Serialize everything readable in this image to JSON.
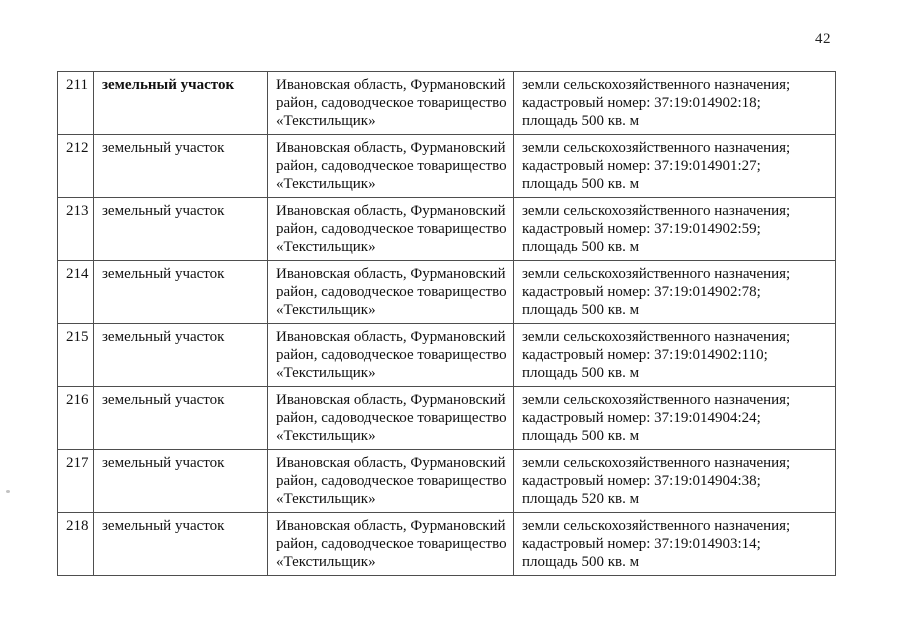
{
  "page_number": "42",
  "table": {
    "rows": [
      {
        "num": "211",
        "type": "земельный участок",
        "location_lines": [
          "Ивановская область, Фурмановский",
          "район, садоводческое товарищество",
          "«Текстильщик»"
        ],
        "details_lines": [
          "земли сельскохозяйственного назначения;",
          "кадастровый номер: 37:19:014902:18;",
          "площадь 500 кв. м"
        ]
      },
      {
        "num": "212",
        "type": "земельный участок",
        "location_lines": [
          "Ивановская область, Фурмановский",
          "район, садоводческое товарищество",
          "«Текстильщик»"
        ],
        "details_lines": [
          "земли сельскохозяйственного назначения;",
          "кадастровый номер: 37:19:014901:27;",
          "площадь 500 кв. м"
        ]
      },
      {
        "num": "213",
        "type": "земельный участок",
        "location_lines": [
          "Ивановская область, Фурмановский",
          "район, садоводческое товарищество",
          "«Текстильщик»"
        ],
        "details_lines": [
          "земли сельскохозяйственного назначения;",
          "кадастровый номер: 37:19:014902:59;",
          "площадь 500 кв. м"
        ]
      },
      {
        "num": "214",
        "type": "земельный участок",
        "location_lines": [
          "Ивановская область, Фурмановский",
          "район, садоводческое товарищество",
          "«Текстильщик»"
        ],
        "details_lines": [
          "земли сельскохозяйственного назначения;",
          "кадастровый номер: 37:19:014902:78;",
          "площадь 500 кв. м"
        ]
      },
      {
        "num": "215",
        "type": "земельный участок",
        "location_lines": [
          "Ивановская область, Фурмановский",
          "район, садоводческое товарищество",
          "«Текстильщик»"
        ],
        "details_lines": [
          "земли сельскохозяйственного назначения;",
          "кадастровый номер: 37:19:014902:110;",
          "площадь 500 кв. м"
        ]
      },
      {
        "num": "216",
        "type": "земельный участок",
        "location_lines": [
          "Ивановская область, Фурмановский",
          "район, садоводческое товарищество",
          "«Текстильщик»"
        ],
        "details_lines": [
          "земли сельскохозяйственного назначения;",
          "кадастровый номер: 37:19:014904:24;",
          "площадь 500 кв. м"
        ]
      },
      {
        "num": "217",
        "type": "земельный участок",
        "location_lines": [
          "Ивановская область, Фурмановский",
          "район, садоводческое товарищество",
          "«Текстильщик»"
        ],
        "details_lines": [
          "земли сельскохозяйственного назначения;",
          "кадастровый номер: 37:19:014904:38;",
          "площадь 520 кв. м"
        ]
      },
      {
        "num": "218",
        "type": "земельный участок",
        "location_lines": [
          "Ивановская область, Фурмановский",
          "район, садоводческое товарищество",
          "«Текстильщик»"
        ],
        "details_lines": [
          "земли сельскохозяйственного назначения;",
          "кадастровый номер: 37:19:014903:14;",
          "площадь 500 кв. м"
        ]
      }
    ]
  }
}
